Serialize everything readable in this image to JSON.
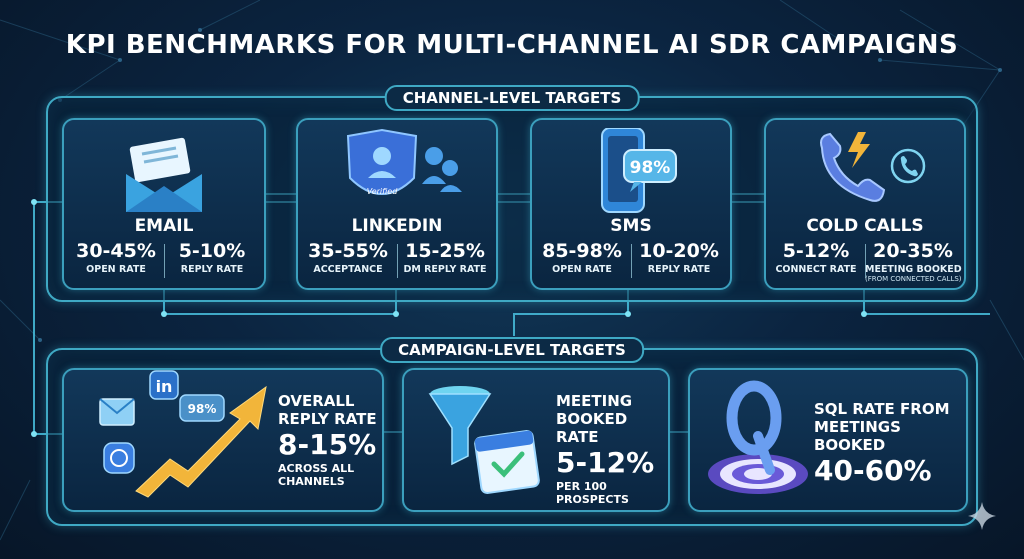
{
  "title": "KPI BENCHMARKS FOR MULTI-CHANNEL AI SDR CAMPAIGNS",
  "channel_section": {
    "label": "CHANNEL-LEVEL TARGETS",
    "channels": [
      {
        "name": "EMAIL",
        "icon": "envelope-icon",
        "m1_value": "30-45%",
        "m1_label": "OPEN RATE",
        "m2_value": "5-10%",
        "m2_label": "REPLY RATE"
      },
      {
        "name": "LINKEDIN",
        "icon": "verified-shield-icon",
        "badge": "Verified",
        "m1_value": "35-55%",
        "m1_label": "ACCEPTANCE",
        "m2_value": "15-25%",
        "m2_label": "DM REPLY RATE"
      },
      {
        "name": "SMS",
        "icon": "phone-message-icon",
        "badge": "98%",
        "m1_value": "85-98%",
        "m1_label": "OPEN RATE",
        "m2_value": "10-20%",
        "m2_label": "REPLY RATE"
      },
      {
        "name": "COLD CALLS",
        "icon": "phone-call-icon",
        "m1_value": "5-12%",
        "m1_label": "CONNECT RATE",
        "m2_value": "20-35%",
        "m2_label": "MEETING BOOKED",
        "m2_note": "(FROM CONNECTED CALLS)"
      }
    ]
  },
  "campaign_section": {
    "label": "CAMPAIGN-LEVEL TARGETS",
    "cards": [
      {
        "heading1": "OVERALL",
        "heading2": "REPLY RATE",
        "value": "8-15%",
        "sub1": "ACROSS ALL",
        "sub2": "CHANNELS",
        "icon": "trend-arrow-icon",
        "badge_in": "in",
        "badge_pct": "98%"
      },
      {
        "heading1": "MEETING",
        "heading2": "BOOKED RATE",
        "value": "5-12%",
        "sub1": "PER 100",
        "sub2": "PROSPECTS",
        "icon": "funnel-calendar-icon"
      },
      {
        "heading1": "SQL RATE FROM",
        "heading2": "MEETINGS BOOKED",
        "value": "40-60%",
        "icon": "target-q-icon"
      }
    ]
  },
  "colors": {
    "accent": "#3fa9c4",
    "background": "#0b2440",
    "arrow": "#f2b53a"
  }
}
